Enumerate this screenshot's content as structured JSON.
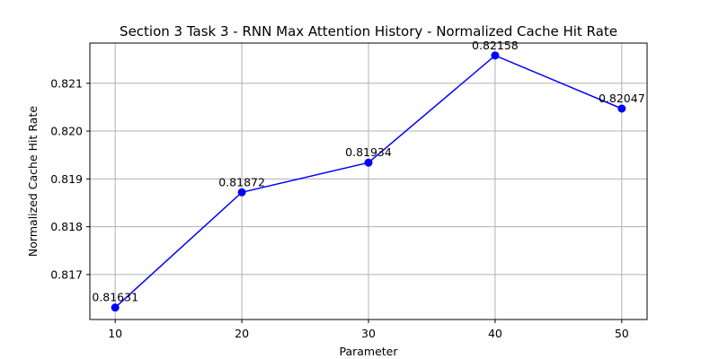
{
  "chart_data": {
    "type": "line",
    "title": "Section 3 Task 3 - RNN Max Attention History - Normalized Cache Hit Rate",
    "xlabel": "Parameter",
    "ylabel": "Normalized Cache Hit Rate",
    "x": [
      10,
      20,
      30,
      40,
      50
    ],
    "xticks": [
      "10",
      "20",
      "30",
      "40",
      "50"
    ],
    "yticks": [
      "0.817",
      "0.818",
      "0.819",
      "0.820",
      "0.821"
    ],
    "ytick_values": [
      0.817,
      0.818,
      0.819,
      0.82,
      0.821
    ],
    "xlim": [
      8,
      52
    ],
    "ylim": [
      0.81606,
      0.82184
    ],
    "grid": true,
    "series": [
      {
        "values": [
          0.81631,
          0.81872,
          0.81934,
          0.82158,
          0.82047
        ],
        "labels": [
          "0.81631",
          "0.81872",
          "0.81934",
          "0.82158",
          "0.82047"
        ],
        "color": "#0000ff",
        "marker": "circle"
      }
    ]
  }
}
